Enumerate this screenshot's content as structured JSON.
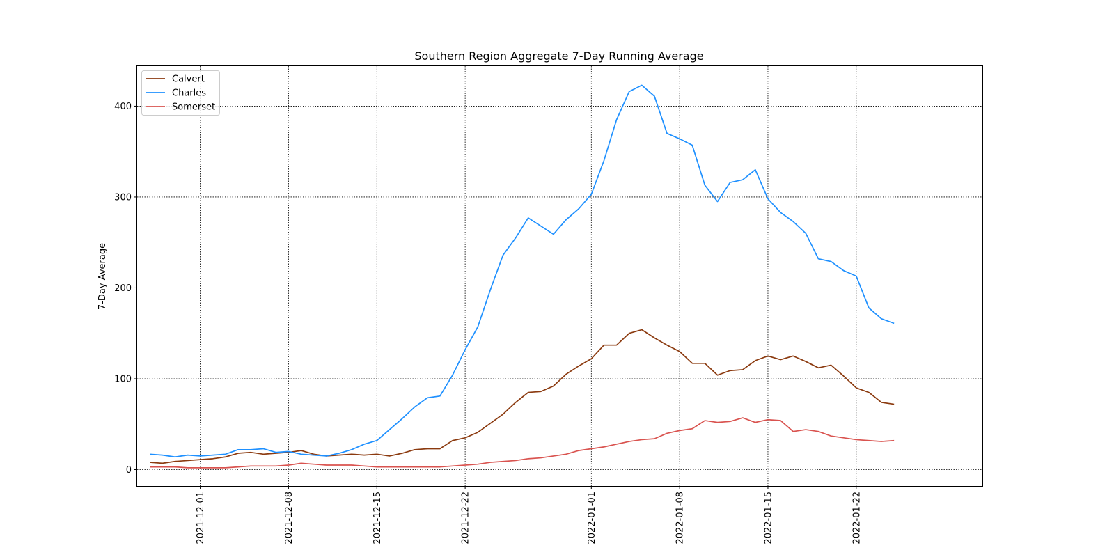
{
  "chart_data": {
    "type": "line",
    "title": "Southern Region Aggregate 7-Day Running Average",
    "xlabel": "",
    "ylabel": "7-Day Average",
    "x_start": "2021-11-27",
    "x_range": [
      "2021-11-26",
      "2022-02-01"
    ],
    "xticks": [
      "2021-12-01",
      "2021-12-08",
      "2021-12-15",
      "2021-12-22",
      "2022-01-01",
      "2022-01-08",
      "2022-01-15",
      "2022-01-22"
    ],
    "yticks": [
      0,
      100,
      200,
      300,
      400
    ],
    "ylim": [
      -18,
      444
    ],
    "grid": true,
    "legend_position": "top-left",
    "series": [
      {
        "name": "Calvert",
        "color": "#8B3A0F",
        "values": [
          8,
          7,
          9,
          10,
          11,
          12,
          14,
          18,
          19,
          17,
          18,
          19,
          21,
          17,
          15,
          16,
          17,
          16,
          17,
          15,
          18,
          22,
          23,
          23,
          32,
          35,
          41,
          51,
          61,
          74,
          85,
          86,
          92,
          105,
          114,
          122,
          137,
          137,
          150,
          154,
          145,
          137,
          130,
          117,
          117,
          104,
          109,
          110,
          120,
          125,
          121,
          125,
          119,
          112,
          115,
          103,
          90,
          85,
          74,
          72
        ]
      },
      {
        "name": "Charles",
        "color": "#1E90FF",
        "values": [
          17,
          16,
          14,
          16,
          15,
          16,
          17,
          22,
          22,
          23,
          19,
          20,
          17,
          16,
          15,
          18,
          22,
          28,
          32,
          44,
          56,
          69,
          79,
          81,
          104,
          132,
          157,
          198,
          236,
          255,
          277,
          268,
          259,
          275,
          287,
          303,
          340,
          385,
          416,
          423,
          411,
          370,
          364,
          357,
          313,
          295,
          316,
          319,
          330,
          298,
          283,
          273,
          260,
          232,
          229,
          219,
          213,
          178,
          166,
          161
        ]
      },
      {
        "name": "Somerset",
        "color": "#D9534F",
        "values": [
          3,
          3,
          3,
          2,
          2,
          2,
          2,
          3,
          4,
          4,
          4,
          5,
          7,
          6,
          5,
          5,
          5,
          4,
          3,
          3,
          3,
          3,
          3,
          3,
          4,
          5,
          6,
          8,
          9,
          10,
          12,
          13,
          15,
          17,
          21,
          23,
          25,
          28,
          31,
          33,
          34,
          40,
          43,
          45,
          54,
          52,
          53,
          57,
          52,
          55,
          54,
          42,
          44,
          42,
          37,
          35,
          33,
          32,
          31,
          32
        ]
      }
    ]
  }
}
